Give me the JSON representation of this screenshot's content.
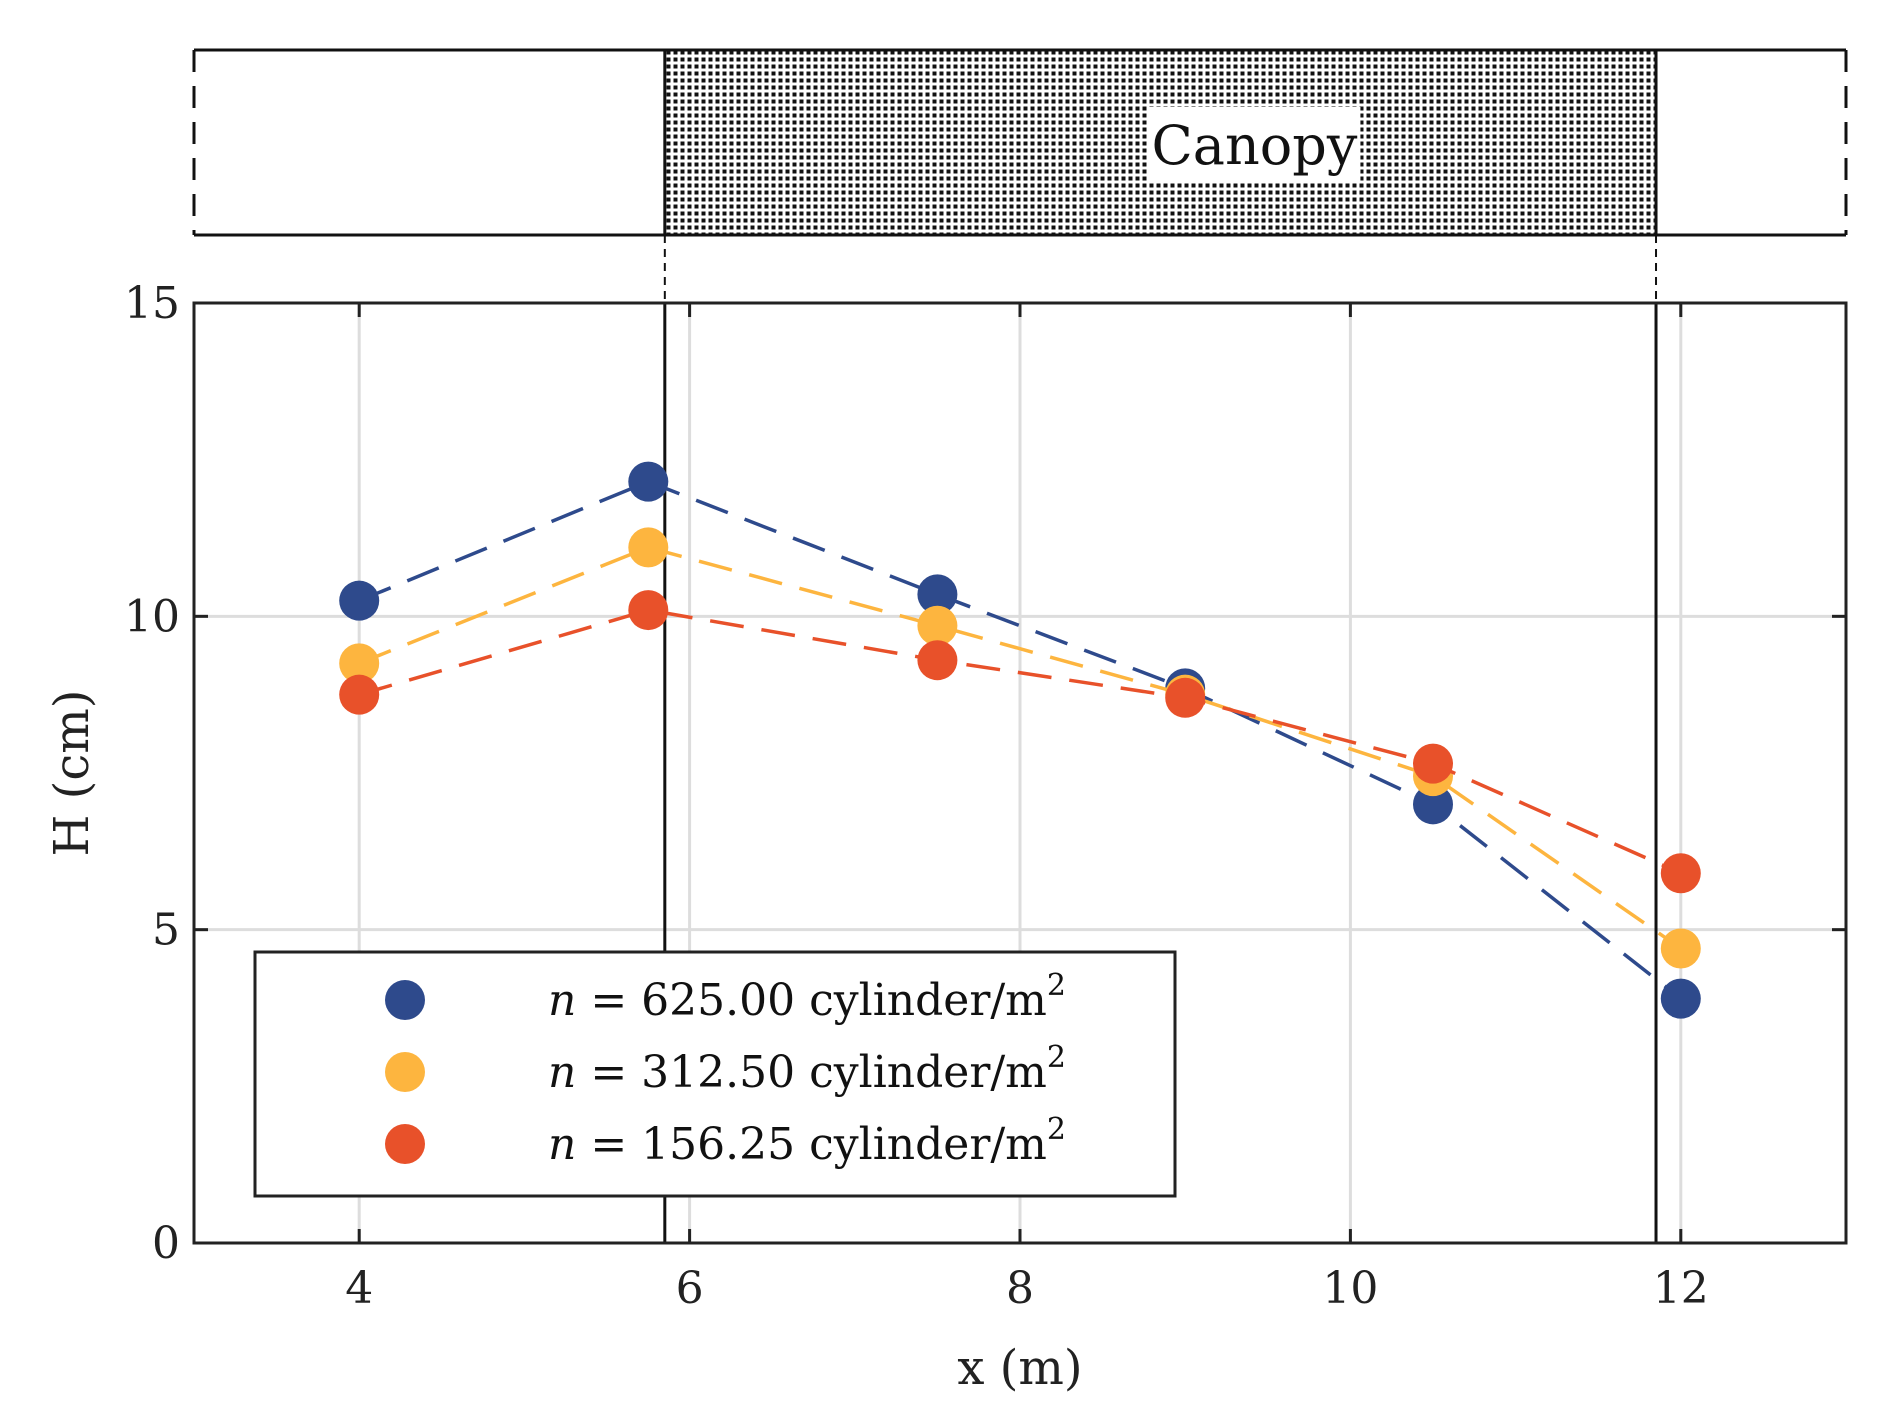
{
  "chart_data": {
    "type": "line",
    "title": "",
    "xlabel": "x (m)",
    "ylabel": "H (cm)",
    "xlim": [
      3,
      13
    ],
    "ylim": [
      0,
      15
    ],
    "xticks": [
      4,
      6,
      8,
      10,
      12
    ],
    "yticks": [
      0,
      5,
      10,
      15
    ],
    "grid": true,
    "legend_position": "bottom-left",
    "x": [
      4,
      5.75,
      7.5,
      9,
      10.5,
      12
    ],
    "series": [
      {
        "name": "n = 625.00 cylinder/m2",
        "label_var": "n",
        "label_rest": " = 625.00 cylinder/m",
        "label_sup": "2",
        "color": "#2e4a8c",
        "values": [
          10.25,
          12.15,
          10.35,
          8.85,
          7.0,
          3.9
        ]
      },
      {
        "name": "n = 312.50 cylinder/m2",
        "label_var": "n",
        "label_rest": " = 312.50 cylinder/m",
        "label_sup": "2",
        "color": "#fdb53f",
        "values": [
          9.25,
          11.1,
          9.85,
          8.75,
          7.45,
          4.7
        ]
      },
      {
        "name": "n = 156.25 cylinder/m2",
        "label_var": "n",
        "label_rest": " = 156.25 cylinder/m",
        "label_sup": "2",
        "color": "#e8512a",
        "values": [
          8.75,
          10.1,
          9.3,
          8.7,
          7.65,
          5.9
        ]
      }
    ],
    "canopy": {
      "label": "Canopy",
      "x_start": 5.85,
      "x_end": 11.85
    }
  }
}
